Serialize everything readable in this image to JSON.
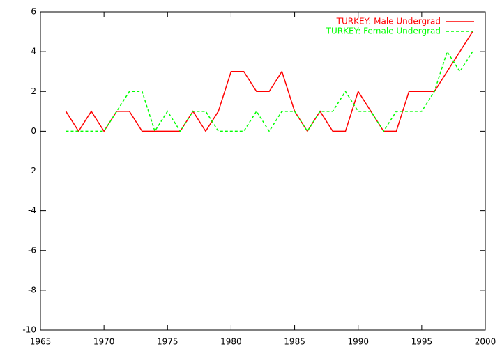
{
  "chart_data": {
    "type": "line",
    "x": [
      1967,
      1968,
      1969,
      1970,
      1971,
      1972,
      1973,
      1974,
      1975,
      1976,
      1977,
      1978,
      1979,
      1980,
      1981,
      1982,
      1983,
      1984,
      1985,
      1986,
      1987,
      1988,
      1989,
      1990,
      1991,
      1992,
      1993,
      1994,
      1995,
      1996,
      1997,
      1998,
      1999
    ],
    "series": [
      {
        "name": "TURKEY: Male Undergrad",
        "color": "#ff0000",
        "dashed": false,
        "values": [
          1,
          0,
          1,
          0,
          1,
          1,
          0,
          0,
          0,
          0,
          1,
          0,
          1,
          3,
          3,
          2,
          2,
          3,
          1,
          0,
          1,
          0,
          0,
          2,
          1,
          0,
          0,
          2,
          2,
          2,
          3,
          4,
          5
        ]
      },
      {
        "name": "TURKEY: Female Undergrad",
        "color": "#00ff00",
        "dashed": true,
        "values": [
          0,
          0,
          0,
          0,
          1,
          2,
          2,
          0,
          1,
          0,
          1,
          1,
          0,
          0,
          0,
          1,
          0,
          1,
          1,
          0,
          1,
          1,
          2,
          1,
          1,
          0,
          1,
          1,
          1,
          2,
          4,
          3,
          4
        ]
      }
    ],
    "xlim": [
      1965,
      2000
    ],
    "xticks": [
      1965,
      1970,
      1975,
      1980,
      1985,
      1990,
      1995,
      2000
    ],
    "ylim": [
      -10,
      6
    ],
    "yticks": [
      -10,
      -8,
      -6,
      -4,
      -2,
      0,
      2,
      4,
      6
    ],
    "legend": "top-right"
  }
}
